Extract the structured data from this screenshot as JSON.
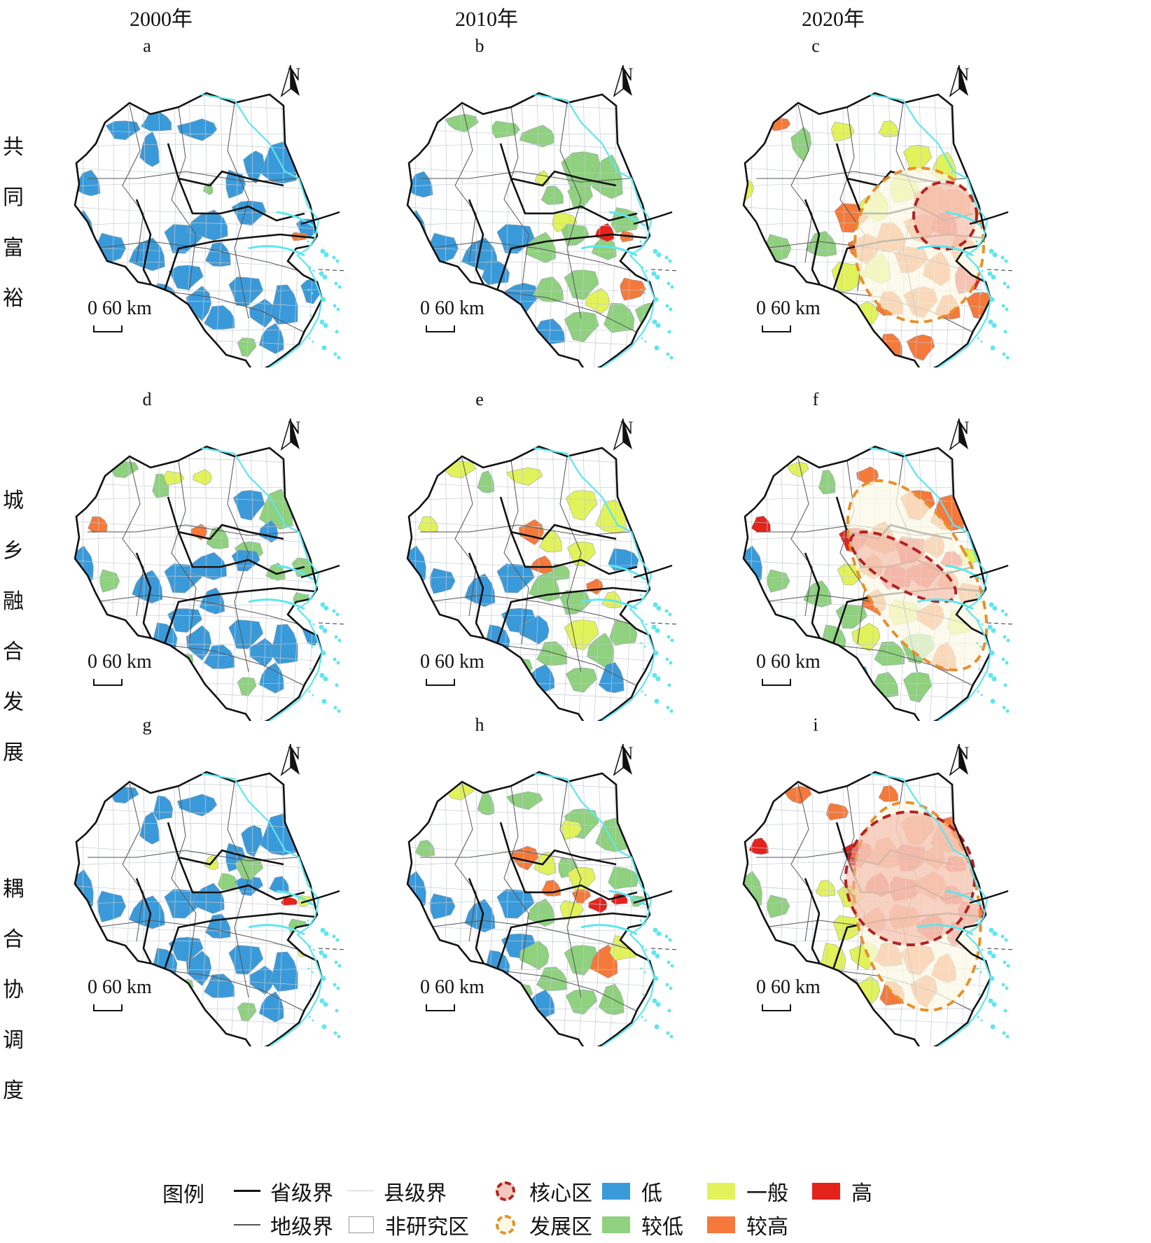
{
  "column_headers": [
    "2000年",
    "2010年",
    "2020年"
  ],
  "row_headers": [
    "共同富裕",
    "城乡融合发展",
    "耦合协调度"
  ],
  "panels": [
    {
      "label": "a",
      "scale_text": "0 60 km",
      "north": "N"
    },
    {
      "label": "b",
      "scale_text": "0 60 km",
      "north": "N"
    },
    {
      "label": "c",
      "scale_text": "0 60 km",
      "north": "N"
    },
    {
      "label": "d",
      "scale_text": "0 60 km",
      "north": "N"
    },
    {
      "label": "e",
      "scale_text": "0 60 km",
      "north": "N"
    },
    {
      "label": "f",
      "scale_text": "0 60 km",
      "north": "N"
    },
    {
      "label": "g",
      "scale_text": "0 60 km",
      "north": "N"
    },
    {
      "label": "h",
      "scale_text": "0 60 km",
      "north": "N"
    },
    {
      "label": "i",
      "scale_text": "0 60 km",
      "north": "N"
    }
  ],
  "legend": {
    "title": "图例",
    "items": [
      {
        "label": "省级界",
        "kind": "line-thick"
      },
      {
        "label": "地级界",
        "kind": "line-mid"
      },
      {
        "label": "县级界",
        "kind": "line-thin"
      },
      {
        "label": "非研究区",
        "kind": "box-white"
      },
      {
        "label": "核心区",
        "kind": "ring",
        "color": "#b22222"
      },
      {
        "label": "发展区",
        "kind": "ring",
        "color": "#e8902a"
      },
      {
        "label": "低",
        "kind": "swatch",
        "color": "#3a9ad9"
      },
      {
        "label": "较低",
        "kind": "swatch",
        "color": "#8fd17e"
      },
      {
        "label": "一般",
        "kind": "swatch",
        "color": "#e2f25a"
      },
      {
        "label": "较高",
        "kind": "swatch",
        "color": "#f5793a"
      },
      {
        "label": "高",
        "kind": "swatch",
        "color": "#e3231c"
      }
    ]
  },
  "colors": {
    "low": "#3a9ad9",
    "lower": "#8fd17e",
    "medium": "#e2f25a",
    "higher": "#f5793a",
    "high": "#e3231c",
    "coast": "#5ee6f0",
    "core_zone": "#b22222",
    "development_zone": "#e8902a"
  }
}
